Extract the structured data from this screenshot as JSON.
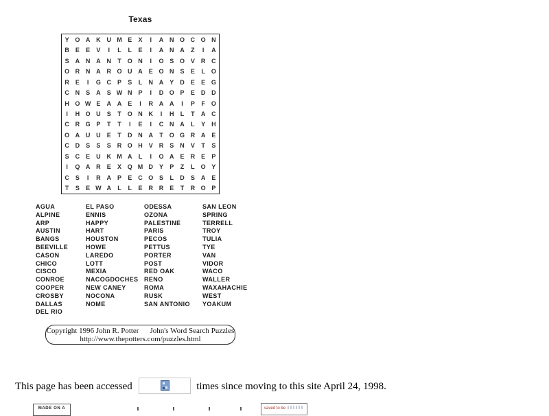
{
  "puzzle": {
    "title": "Texas",
    "grid_rows": [
      "YOAKUMEXIANOCON",
      "BEEVILLEIANAZIA",
      "SANANTONIOSOVRC",
      "ORNAROUAEONSELO",
      "REIGCPSLNAYDEEG",
      "CNSASWNPIDOPEDD",
      "HOWEAAEIRAAIPFO",
      "IHOUSTONKIHLTAC",
      "CRGPTTIEICNALYH",
      "OAUUETDNATOGRAE",
      "CDSSSROHVRSNVTS",
      "SCEUKMALIOAEREP",
      "IQAREXQMDYPZLOY",
      "CSIRAPECOSLDSAE",
      "TSEWALLERRETROP"
    ],
    "word_columns": [
      [
        "AGUA",
        "ALPINE",
        "ARP",
        "AUSTIN",
        "BANGS",
        "BEEVILLE",
        "CASON",
        "CHICO",
        "CISCO",
        "CONROE",
        "COOPER",
        "CROSBY",
        "DALLAS",
        "DEL RIO"
      ],
      [
        "EL PASO",
        "ENNIS",
        "HAPPY",
        "HART",
        "HOUSTON",
        "HOWE",
        "LAREDO",
        "LOTT",
        "MEXIA",
        "NACOGDOCHES",
        "NEW CANEY",
        "NOCONA",
        "NOME"
      ],
      [
        "ODESSA",
        "OZONA",
        "PALESTINE",
        "PARIS",
        "PECOS",
        "PETTUS",
        "PORTER",
        "POST",
        "RED OAK",
        "RENO",
        "ROMA",
        "RUSK",
        "SAN ANTONIO"
      ],
      [
        "SAN LEON",
        "SPRING",
        "TERRELL",
        "TROY",
        "TULIA",
        "TYE",
        "VAN",
        "VIDOR",
        "WACO",
        "WALLER",
        "WAXAHACHIE",
        "WEST",
        "YOAKUM"
      ]
    ]
  },
  "copyright": {
    "line1_left": "Copyright 1996 John R. Potter",
    "line1_right": "John's Word Search Puzzles",
    "line2": "http://www.thepotters.com/puzzles.html"
  },
  "counter": {
    "text_before": "This page has been accessed",
    "text_after": "times since moving to this site April 24, 1998.",
    "icon": "broken-image-icon"
  },
  "badges": {
    "left_text": "MADE ON A",
    "right_text": "saved to be"
  },
  "artifacts": {
    "cutoff_marks_x": [
      200,
      252,
      304,
      350
    ]
  },
  "colors": {
    "background": "#ffffff",
    "grid_border": "#222222",
    "broken_image_blue": "#7b9fd0",
    "badge_red": "#b3342a"
  }
}
